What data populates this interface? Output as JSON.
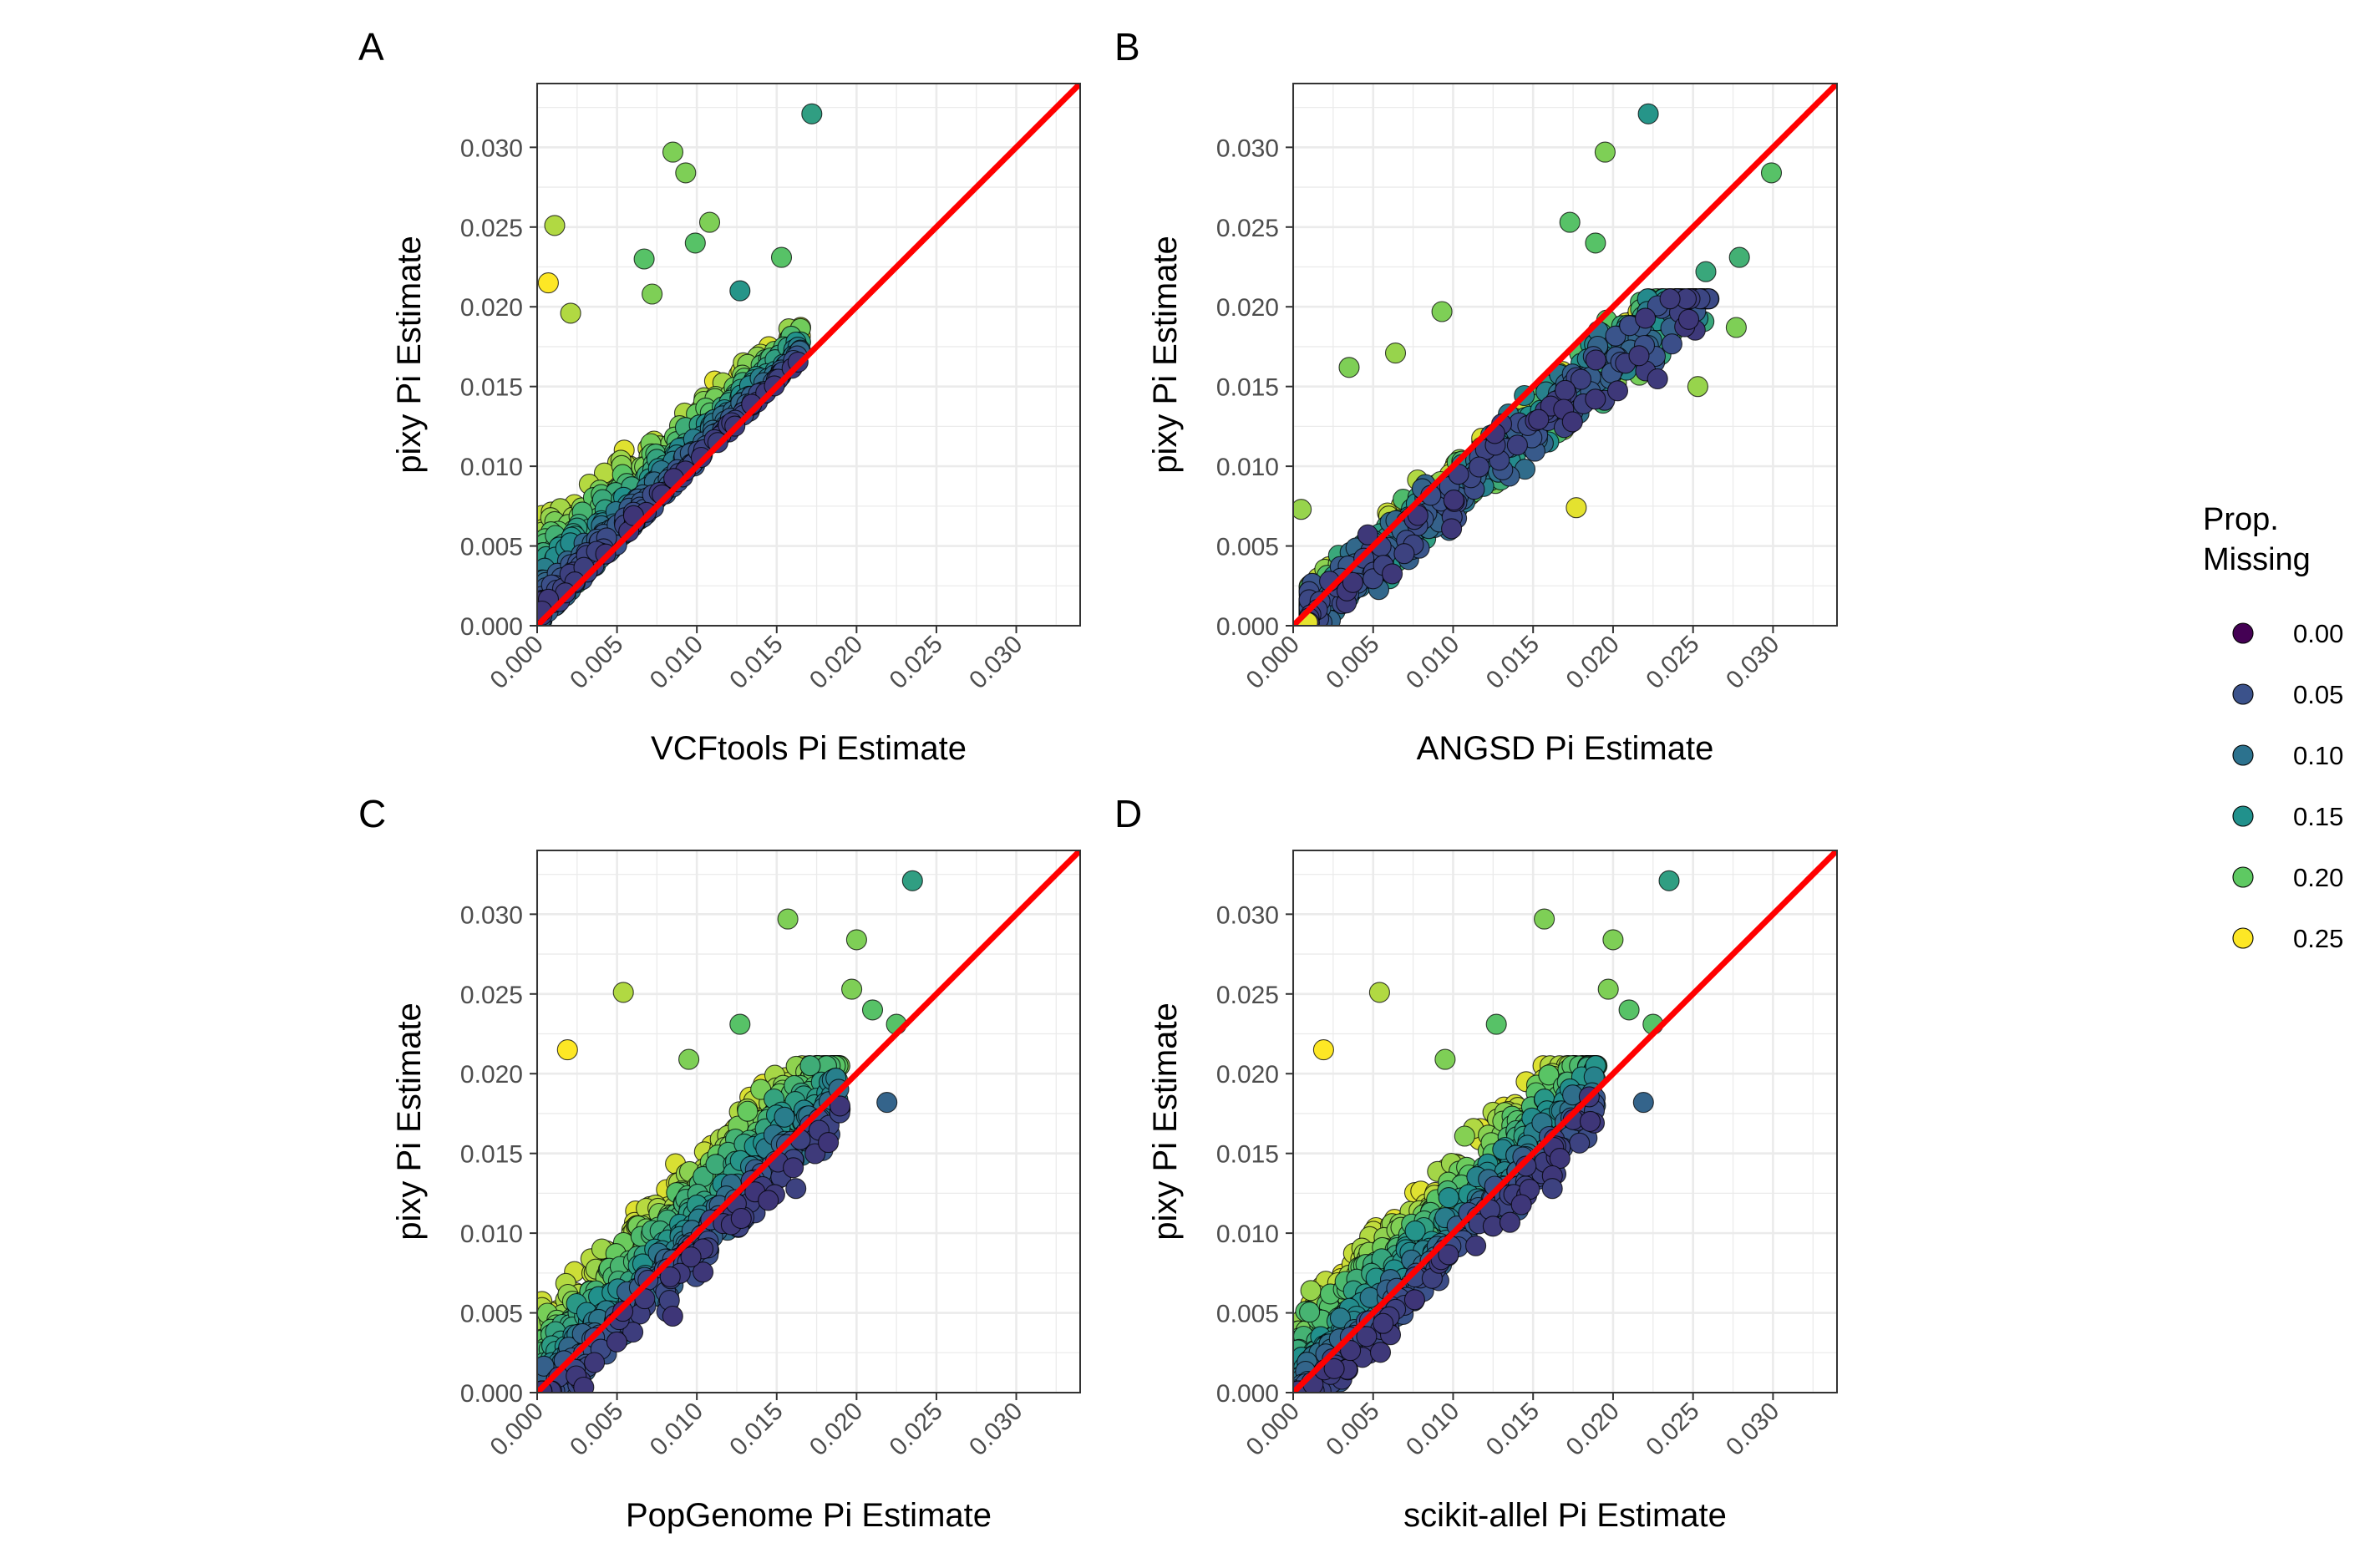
{
  "legend": {
    "title_line1": "Prop.",
    "title_line2": "Missing",
    "items": [
      {
        "label": "0.00",
        "color": "#440154"
      },
      {
        "label": "0.05",
        "color": "#3b528b"
      },
      {
        "label": "0.10",
        "color": "#2c728e"
      },
      {
        "label": "0.15",
        "color": "#21918c"
      },
      {
        "label": "0.20",
        "color": "#5ec962"
      },
      {
        "label": "0.25",
        "color": "#fde725"
      }
    ]
  },
  "colors": {
    "identity_line": "#ff0000",
    "grid": "#ebebeb",
    "panel_border": "#333333",
    "point_outline": "#000000",
    "viridis_scale": [
      "#440154",
      "#3b528b",
      "#21918c",
      "#5ec962",
      "#fde725"
    ]
  },
  "chart_data": [
    {
      "id": "A",
      "type": "scatter",
      "panel_label": "A",
      "xlabel": "VCFtools Pi Estimate",
      "ylabel": "pixy Pi Estimate",
      "xlim": [
        0,
        0.034
      ],
      "ylim": [
        0,
        0.034
      ],
      "x_ticks": [
        0.0,
        0.005,
        0.01,
        0.015,
        0.02,
        0.025,
        0.03
      ],
      "x_tick_labels": [
        "0.000",
        "0.005",
        "0.010",
        "0.015",
        "0.020",
        "0.025",
        "0.030"
      ],
      "y_ticks": [
        0.0,
        0.005,
        0.01,
        0.015,
        0.02,
        0.025,
        0.03
      ],
      "y_tick_labels": [
        "0.000",
        "0.005",
        "0.010",
        "0.015",
        "0.020",
        "0.025",
        "0.030"
      ],
      "grid": true,
      "reference_line": "y = x",
      "relation": "upper",
      "outliers": [
        {
          "x": 0.0172,
          "y": 0.0321,
          "missing": 0.14
        },
        {
          "x": 0.0085,
          "y": 0.0297,
          "missing": 0.2
        },
        {
          "x": 0.0093,
          "y": 0.0284,
          "missing": 0.2
        },
        {
          "x": 0.0011,
          "y": 0.0251,
          "missing": 0.22
        },
        {
          "x": 0.0108,
          "y": 0.0253,
          "missing": 0.2
        },
        {
          "x": 0.0099,
          "y": 0.024,
          "missing": 0.18
        },
        {
          "x": 0.0153,
          "y": 0.0231,
          "missing": 0.18
        },
        {
          "x": 0.0067,
          "y": 0.023,
          "missing": 0.18
        },
        {
          "x": 0.0072,
          "y": 0.0208,
          "missing": 0.2
        },
        {
          "x": 0.0127,
          "y": 0.021,
          "missing": 0.13
        },
        {
          "x": 0.0007,
          "y": 0.0215,
          "missing": 0.25
        },
        {
          "x": 0.0021,
          "y": 0.0196,
          "missing": 0.22
        }
      ]
    },
    {
      "id": "B",
      "type": "scatter",
      "panel_label": "B",
      "xlabel": "ANGSD Pi Estimate",
      "ylabel": "pixy Pi Estimate",
      "xlim": [
        0,
        0.034
      ],
      "ylim": [
        0,
        0.034
      ],
      "x_ticks": [
        0.0,
        0.005,
        0.01,
        0.015,
        0.02,
        0.025,
        0.03
      ],
      "x_tick_labels": [
        "0.000",
        "0.005",
        "0.010",
        "0.015",
        "0.020",
        "0.025",
        "0.030"
      ],
      "y_ticks": [
        0.0,
        0.005,
        0.01,
        0.015,
        0.02,
        0.025,
        0.03
      ],
      "y_tick_labels": [
        "0.000",
        "0.005",
        "0.010",
        "0.015",
        "0.020",
        "0.025",
        "0.030"
      ],
      "grid": true,
      "reference_line": "y = x",
      "relation": "scatter",
      "outliers": [
        {
          "x": 0.0222,
          "y": 0.0321,
          "missing": 0.13
        },
        {
          "x": 0.0195,
          "y": 0.0297,
          "missing": 0.2
        },
        {
          "x": 0.0299,
          "y": 0.0284,
          "missing": 0.18
        },
        {
          "x": 0.0173,
          "y": 0.0253,
          "missing": 0.18
        },
        {
          "x": 0.0189,
          "y": 0.024,
          "missing": 0.18
        },
        {
          "x": 0.0279,
          "y": 0.0231,
          "missing": 0.16
        },
        {
          "x": 0.0258,
          "y": 0.0222,
          "missing": 0.15
        },
        {
          "x": 0.0277,
          "y": 0.0187,
          "missing": 0.2
        },
        {
          "x": 0.0253,
          "y": 0.015,
          "missing": 0.21
        },
        {
          "x": 0.0093,
          "y": 0.0197,
          "missing": 0.2
        },
        {
          "x": 0.0035,
          "y": 0.0162,
          "missing": 0.2
        },
        {
          "x": 0.0064,
          "y": 0.0171,
          "missing": 0.21
        },
        {
          "x": 0.0177,
          "y": 0.0074,
          "missing": 0.24
        },
        {
          "x": 0.0005,
          "y": 0.0073,
          "missing": 0.21
        },
        {
          "x": 0.0009,
          "y": 0.0002,
          "missing": 0.24
        }
      ]
    },
    {
      "id": "C",
      "type": "scatter",
      "panel_label": "C",
      "xlabel": "PopGenome Pi Estimate",
      "ylabel": "pixy Pi Estimate",
      "xlim": [
        0,
        0.034
      ],
      "ylim": [
        0,
        0.034
      ],
      "x_ticks": [
        0.0,
        0.005,
        0.01,
        0.015,
        0.02,
        0.025,
        0.03
      ],
      "x_tick_labels": [
        "0.000",
        "0.005",
        "0.010",
        "0.015",
        "0.020",
        "0.025",
        "0.030"
      ],
      "y_ticks": [
        0.0,
        0.005,
        0.01,
        0.015,
        0.02,
        0.025,
        0.03
      ],
      "y_tick_labels": [
        "0.000",
        "0.005",
        "0.010",
        "0.015",
        "0.020",
        "0.025",
        "0.030"
      ],
      "grid": true,
      "reference_line": "y = x",
      "relation": "mixed",
      "outliers": [
        {
          "x": 0.0235,
          "y": 0.0321,
          "missing": 0.14
        },
        {
          "x": 0.0157,
          "y": 0.0297,
          "missing": 0.2
        },
        {
          "x": 0.02,
          "y": 0.0284,
          "missing": 0.2
        },
        {
          "x": 0.0054,
          "y": 0.0251,
          "missing": 0.22
        },
        {
          "x": 0.0197,
          "y": 0.0253,
          "missing": 0.2
        },
        {
          "x": 0.021,
          "y": 0.024,
          "missing": 0.18
        },
        {
          "x": 0.0225,
          "y": 0.0231,
          "missing": 0.18
        },
        {
          "x": 0.0019,
          "y": 0.0215,
          "missing": 0.25
        },
        {
          "x": 0.0219,
          "y": 0.0182,
          "missing": 0.08
        },
        {
          "x": 0.0162,
          "y": 0.0128,
          "missing": 0.05
        },
        {
          "x": 0.0127,
          "y": 0.0231,
          "missing": 0.18
        },
        {
          "x": 0.0095,
          "y": 0.0209,
          "missing": 0.2
        }
      ]
    },
    {
      "id": "D",
      "type": "scatter",
      "panel_label": "D",
      "xlabel": "scikit-allel Pi Estimate",
      "ylabel": "pixy Pi Estimate",
      "xlim": [
        0,
        0.034
      ],
      "ylim": [
        0,
        0.034
      ],
      "x_ticks": [
        0.0,
        0.005,
        0.01,
        0.015,
        0.02,
        0.025,
        0.03
      ],
      "x_tick_labels": [
        "0.000",
        "0.005",
        "0.010",
        "0.015",
        "0.020",
        "0.025",
        "0.030"
      ],
      "y_ticks": [
        0.0,
        0.005,
        0.01,
        0.015,
        0.02,
        0.025,
        0.03
      ],
      "y_tick_labels": [
        "0.000",
        "0.005",
        "0.010",
        "0.015",
        "0.020",
        "0.025",
        "0.030"
      ],
      "grid": true,
      "reference_line": "y = x",
      "relation": "mixed",
      "outliers": [
        {
          "x": 0.0235,
          "y": 0.0321,
          "missing": 0.14
        },
        {
          "x": 0.0157,
          "y": 0.0297,
          "missing": 0.2
        },
        {
          "x": 0.02,
          "y": 0.0284,
          "missing": 0.2
        },
        {
          "x": 0.0054,
          "y": 0.0251,
          "missing": 0.22
        },
        {
          "x": 0.0197,
          "y": 0.0253,
          "missing": 0.2
        },
        {
          "x": 0.021,
          "y": 0.024,
          "missing": 0.18
        },
        {
          "x": 0.0225,
          "y": 0.0231,
          "missing": 0.18
        },
        {
          "x": 0.0019,
          "y": 0.0215,
          "missing": 0.25
        },
        {
          "x": 0.0219,
          "y": 0.0182,
          "missing": 0.08
        },
        {
          "x": 0.0162,
          "y": 0.0128,
          "missing": 0.05
        },
        {
          "x": 0.0127,
          "y": 0.0231,
          "missing": 0.18
        },
        {
          "x": 0.0095,
          "y": 0.0209,
          "missing": 0.2
        }
      ]
    }
  ]
}
